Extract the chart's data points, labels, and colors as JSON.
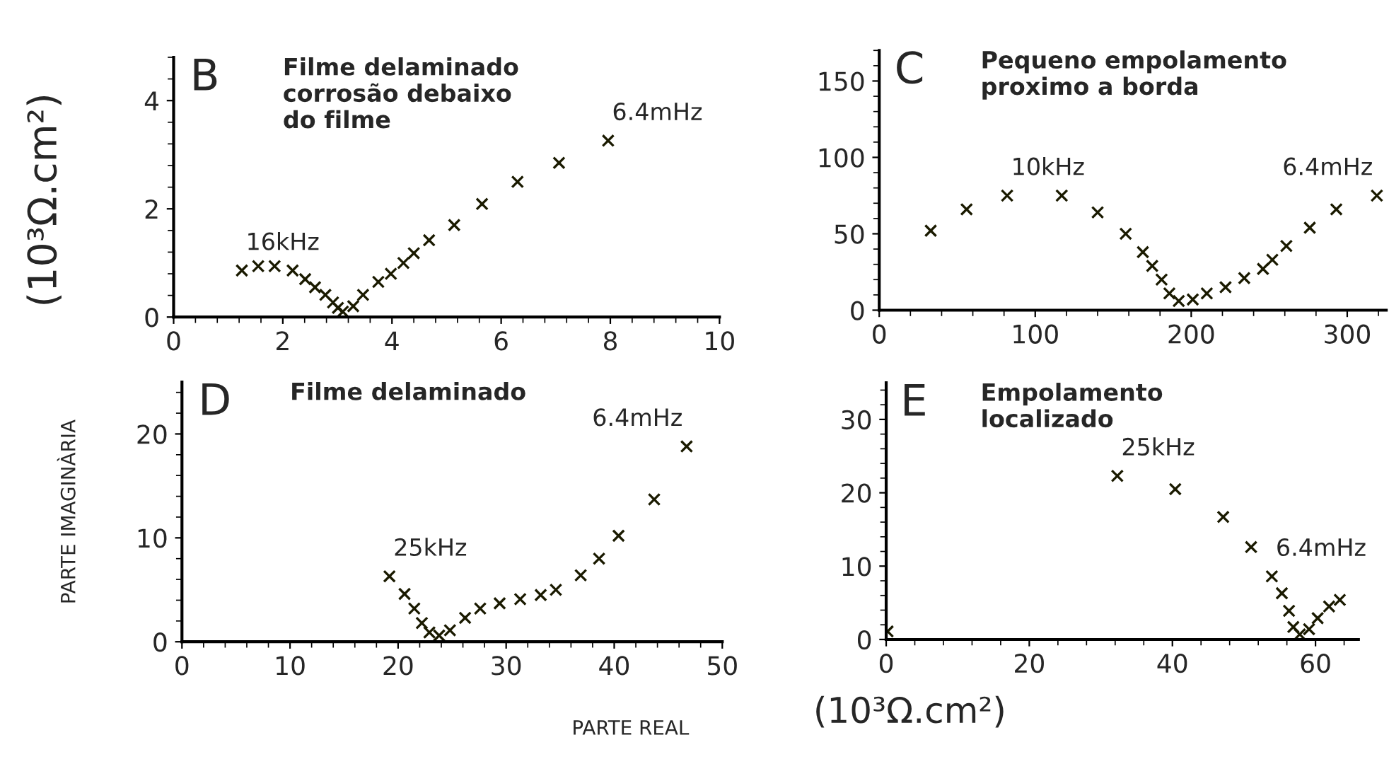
{
  "chart_data": [
    {
      "type": "scatter",
      "title": "B",
      "subtitle": "Filme delaminado\ncorrosão debaixo\ndo filme",
      "ylabel": "(10³Ω.cm²)",
      "marker": "cross",
      "xlim": [
        0,
        10
      ],
      "ylim": [
        0,
        4.8
      ],
      "xticks": [
        0,
        2,
        4,
        6,
        8,
        10
      ],
      "yticks": [
        0,
        2,
        4
      ],
      "series": [
        {
          "color": "#1a1a00",
          "x": [
            1.25,
            1.55,
            1.85,
            2.18,
            2.41,
            2.59,
            2.78,
            2.92,
            3.01,
            3.1,
            3.29,
            3.47,
            3.75,
            3.98,
            4.21,
            4.4,
            4.68,
            5.14,
            5.65,
            6.3,
            7.06,
            7.96
          ],
          "values": [
            0.86,
            0.94,
            0.94,
            0.86,
            0.7,
            0.55,
            0.41,
            0.27,
            0.17,
            0.1,
            0.2,
            0.41,
            0.65,
            0.8,
            1.0,
            1.18,
            1.42,
            1.7,
            2.09,
            2.5,
            2.85,
            3.26
          ]
        }
      ],
      "annotations": [
        {
          "text": "16kHz",
          "x": 1.25,
          "y": 0.86
        },
        {
          "text": "6.4mHz",
          "x": 7.96,
          "y": 3.26
        }
      ]
    },
    {
      "type": "scatter",
      "title": "C",
      "subtitle": "Pequeno empolamento\nproximo a borda",
      "marker": "cross",
      "xlim": [
        0,
        325
      ],
      "ylim": [
        0,
        170
      ],
      "xticks": [
        0,
        100,
        200,
        300
      ],
      "yticks": [
        0,
        50,
        100,
        150
      ],
      "series": [
        {
          "color": "#1a1a00",
          "x": [
            33,
            56,
            82,
            117,
            140,
            158,
            169,
            175,
            181,
            186,
            192,
            201,
            210,
            222,
            234,
            246,
            252,
            261,
            276,
            293,
            319
          ],
          "values": [
            52,
            66,
            75,
            75,
            64,
            50,
            38,
            29,
            20,
            11,
            6,
            7,
            11,
            15,
            21,
            27,
            33,
            42,
            54,
            66,
            75
          ]
        }
      ],
      "annotations": [
        {
          "text": "10kHz",
          "x": 82,
          "y": 75
        },
        {
          "text": "6.4mHz",
          "x": 319,
          "y": 75
        }
      ]
    },
    {
      "type": "scatter",
      "title": "D",
      "subtitle": "Filme delaminado",
      "ylabel": "PARTE IMAGINÀRIA",
      "xlabel": "PARTE REAL",
      "marker": "cross",
      "xlim": [
        0,
        50
      ],
      "ylim": [
        0,
        25
      ],
      "xticks": [
        0,
        10,
        20,
        30,
        40,
        50
      ],
      "yticks": [
        0,
        10,
        20
      ],
      "series": [
        {
          "color": "#1a1a00",
          "x": [
            19.2,
            20.6,
            21.5,
            22.2,
            22.9,
            23.8,
            24.8,
            26.2,
            27.6,
            29.4,
            31.3,
            33.2,
            34.6,
            36.9,
            38.6,
            40.4,
            43.7,
            46.7
          ],
          "values": [
            6.3,
            4.6,
            3.2,
            1.8,
            0.9,
            0.6,
            1.1,
            2.3,
            3.2,
            3.7,
            4.1,
            4.5,
            5.0,
            6.4,
            8.0,
            10.2,
            13.7,
            18.8
          ]
        }
      ],
      "annotations": [
        {
          "text": "25kHz",
          "x": 19.2,
          "y": 6.3
        },
        {
          "text": "6.4mHz",
          "x": 46.7,
          "y": 18.8
        }
      ]
    },
    {
      "type": "scatter",
      "title": "E",
      "subtitle": "Empolamento\nlocalizado",
      "xlabel": "(10³Ω.cm²)",
      "marker": "cross",
      "xlim": [
        0,
        66
      ],
      "ylim": [
        0,
        35
      ],
      "xticks": [
        0,
        20,
        40,
        60
      ],
      "yticks": [
        0,
        10,
        20,
        30
      ],
      "series": [
        {
          "color": "#1a1a00",
          "x": [
            0.2,
            32.3,
            40.4,
            47.1,
            51.0,
            53.9,
            55.3,
            56.3,
            56.9,
            57.8,
            59.1,
            60.3,
            61.9,
            63.4
          ],
          "values": [
            1.1,
            22.3,
            20.5,
            16.7,
            12.6,
            8.6,
            6.3,
            3.9,
            1.7,
            0.7,
            1.4,
            2.9,
            4.5,
            5.4
          ]
        }
      ],
      "annotations": [
        {
          "text": "25kHz",
          "x": 32.3,
          "y": 22.3
        },
        {
          "text": "6.4mHz",
          "x": 53.9,
          "y": 8.6
        }
      ]
    }
  ]
}
